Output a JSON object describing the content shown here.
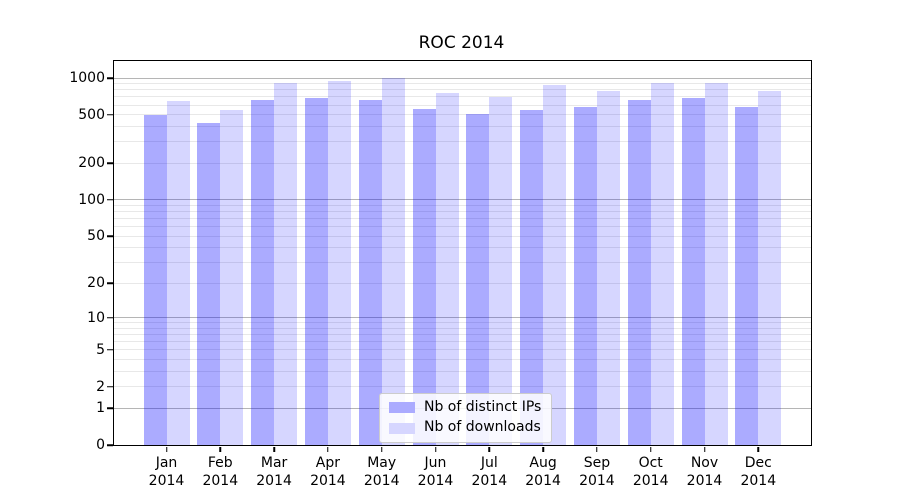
{
  "title": "ROC 2014",
  "chart_data": {
    "type": "bar",
    "title": "ROC 2014",
    "categories": [
      "Jan 2014",
      "Feb 2014",
      "Mar 2014",
      "Apr 2014",
      "May 2014",
      "Jun 2014",
      "Jul 2014",
      "Aug 2014",
      "Sep 2014",
      "Oct 2014",
      "Nov 2014",
      "Dec 2014"
    ],
    "series": [
      {
        "name": "Nb of distinct IPs",
        "color": "rgba(0,0,255,0.33)",
        "swatch_color": "#ababff",
        "values": [
          500,
          430,
          660,
          680,
          665,
          560,
          510,
          545,
          580,
          665,
          680,
          575
        ]
      },
      {
        "name": "Nb of downloads",
        "color": "rgba(0,0,255,0.16)",
        "swatch_color": "#d6d6ff",
        "values": [
          650,
          550,
          915,
          950,
          1000,
          750,
          705,
          880,
          785,
          915,
          905,
          785
        ]
      }
    ],
    "xlabel": "",
    "ylabel": "",
    "yscale": "symlog",
    "yticks": [
      0,
      1,
      2,
      5,
      10,
      20,
      50,
      100,
      200,
      500,
      1000
    ],
    "major_grid_values": [
      1,
      10,
      100,
      1000
    ],
    "ylim": [
      0,
      1380
    ],
    "grid": true,
    "legend_position": "lower center",
    "colors": {
      "grid_major": "#b5b5b5",
      "grid_minor": "#e8e8e8",
      "spine": "#000000"
    }
  },
  "legend": {
    "items": [
      {
        "label": "Nb of distinct IPs",
        "color": "#ababff"
      },
      {
        "label": "Nb of downloads",
        "color": "#d6d6ff"
      }
    ]
  }
}
